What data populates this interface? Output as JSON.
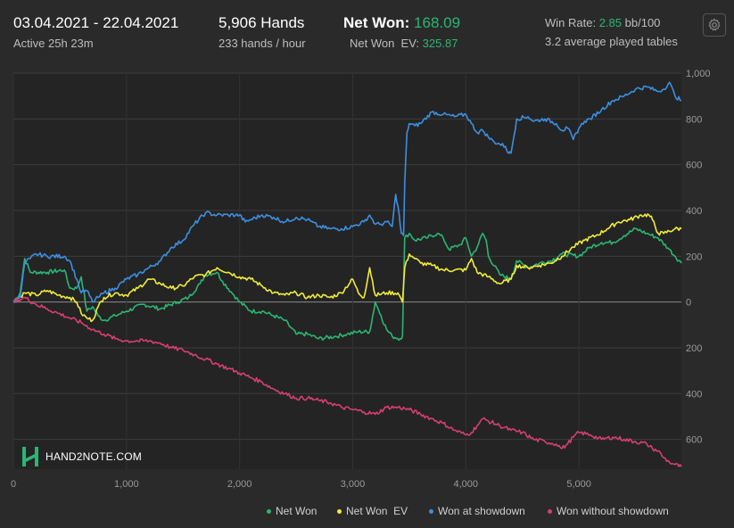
{
  "header": {
    "date_range": "03.04.2021 - 22.04.2021",
    "active": "Active 25h 23m",
    "hands": "5,906 Hands",
    "hands_per_hour": "233 hands / hour",
    "net_won_label": "Net Won:",
    "net_won_value": "168.09",
    "net_won_ev_label": "Net Won  EV:",
    "net_won_ev_value": "325.87",
    "win_rate_label": "Win Rate:",
    "win_rate_value": "2.85",
    "win_rate_unit": "bb/100",
    "avg_tables": "3.2 average played tables",
    "settings_icon": "gear-icon"
  },
  "logo": {
    "text": "HAND2NOTE.COM"
  },
  "colors": {
    "background": "#2a2a2a",
    "net_won": "#2bb673",
    "net_won_ev": "#f0ec3a",
    "showdown": "#3d8fe0",
    "non_showdown": "#d63f72"
  },
  "chart_data": {
    "type": "line",
    "xlim": [
      0,
      5906
    ],
    "ylim": [
      -730,
      1000
    ],
    "x_ticks": [
      0,
      1000,
      2000,
      3000,
      4000,
      5000
    ],
    "x_tick_labels": [
      "0",
      "1,000",
      "2,000",
      "3,000",
      "4,000",
      "5,000"
    ],
    "y_ticks": [
      1000,
      800,
      600,
      400,
      200,
      0,
      -200,
      -400,
      -600
    ],
    "y_tick_labels": [
      "1,000",
      "800",
      "600",
      "400",
      "200",
      "0",
      "200",
      "400",
      "600"
    ],
    "grid": true,
    "legend_position": "bottom-right",
    "series": [
      {
        "name": "Net Won",
        "color": "#2bb673",
        "points": [
          [
            0,
            0
          ],
          [
            60,
            40
          ],
          [
            100,
            190
          ],
          [
            150,
            130
          ],
          [
            300,
            130
          ],
          [
            450,
            140
          ],
          [
            500,
            60
          ],
          [
            560,
            60
          ],
          [
            600,
            110
          ],
          [
            650,
            -40
          ],
          [
            700,
            -20
          ],
          [
            750,
            -60
          ],
          [
            800,
            -80
          ],
          [
            900,
            -60
          ],
          [
            1000,
            -40
          ],
          [
            1150,
            -10
          ],
          [
            1300,
            -30
          ],
          [
            1450,
            0
          ],
          [
            1550,
            20
          ],
          [
            1650,
            80
          ],
          [
            1700,
            120
          ],
          [
            1800,
            130
          ],
          [
            1850,
            90
          ],
          [
            1950,
            30
          ],
          [
            2000,
            0
          ],
          [
            2100,
            -40
          ],
          [
            2200,
            -40
          ],
          [
            2300,
            -60
          ],
          [
            2400,
            -80
          ],
          [
            2500,
            -140
          ],
          [
            2600,
            -140
          ],
          [
            2700,
            -160
          ],
          [
            2850,
            -150
          ],
          [
            2950,
            -140
          ],
          [
            3050,
            -130
          ],
          [
            3150,
            -130
          ],
          [
            3200,
            0
          ],
          [
            3250,
            -60
          ],
          [
            3300,
            -120
          ],
          [
            3350,
            -150
          ],
          [
            3420,
            -160
          ],
          [
            3440,
            -150
          ],
          [
            3460,
            280
          ],
          [
            3500,
            300
          ],
          [
            3550,
            270
          ],
          [
            3650,
            280
          ],
          [
            3750,
            300
          ],
          [
            3800,
            280
          ],
          [
            3850,
            230
          ],
          [
            3950,
            250
          ],
          [
            4000,
            280
          ],
          [
            4050,
            200
          ],
          [
            4100,
            240
          ],
          [
            4150,
            300
          ],
          [
            4180,
            270
          ],
          [
            4200,
            200
          ],
          [
            4300,
            120
          ],
          [
            4400,
            100
          ],
          [
            4450,
            180
          ],
          [
            4550,
            150
          ],
          [
            4650,
            170
          ],
          [
            4750,
            180
          ],
          [
            4850,
            210
          ],
          [
            5000,
            200
          ],
          [
            5100,
            240
          ],
          [
            5200,
            260
          ],
          [
            5300,
            260
          ],
          [
            5400,
            290
          ],
          [
            5500,
            320
          ],
          [
            5600,
            300
          ],
          [
            5700,
            280
          ],
          [
            5800,
            230
          ],
          [
            5850,
            200
          ],
          [
            5906,
            170
          ]
        ]
      },
      {
        "name": "Net Won  EV",
        "color": "#f0ec3a",
        "points": [
          [
            0,
            0
          ],
          [
            100,
            40
          ],
          [
            200,
            30
          ],
          [
            300,
            50
          ],
          [
            400,
            30
          ],
          [
            500,
            20
          ],
          [
            560,
            0
          ],
          [
            600,
            -50
          ],
          [
            650,
            -70
          ],
          [
            700,
            -80
          ],
          [
            750,
            -20
          ],
          [
            800,
            20
          ],
          [
            900,
            40
          ],
          [
            1000,
            30
          ],
          [
            1100,
            60
          ],
          [
            1200,
            100
          ],
          [
            1300,
            80
          ],
          [
            1400,
            60
          ],
          [
            1500,
            70
          ],
          [
            1600,
            110
          ],
          [
            1700,
            120
          ],
          [
            1800,
            150
          ],
          [
            1900,
            130
          ],
          [
            2000,
            110
          ],
          [
            2100,
            100
          ],
          [
            2200,
            70
          ],
          [
            2300,
            40
          ],
          [
            2400,
            30
          ],
          [
            2500,
            40
          ],
          [
            2600,
            20
          ],
          [
            2700,
            30
          ],
          [
            2800,
            20
          ],
          [
            2900,
            40
          ],
          [
            3000,
            100
          ],
          [
            3050,
            40
          ],
          [
            3100,
            20
          ],
          [
            3150,
            150
          ],
          [
            3200,
            30
          ],
          [
            3300,
            40
          ],
          [
            3400,
            40
          ],
          [
            3440,
            0
          ],
          [
            3460,
            150
          ],
          [
            3500,
            210
          ],
          [
            3550,
            190
          ],
          [
            3600,
            170
          ],
          [
            3700,
            160
          ],
          [
            3800,
            140
          ],
          [
            3900,
            140
          ],
          [
            4000,
            140
          ],
          [
            4050,
            190
          ],
          [
            4100,
            130
          ],
          [
            4200,
            110
          ],
          [
            4300,
            80
          ],
          [
            4400,
            100
          ],
          [
            4450,
            160
          ],
          [
            4550,
            150
          ],
          [
            4650,
            160
          ],
          [
            4750,
            170
          ],
          [
            4850,
            200
          ],
          [
            4950,
            240
          ],
          [
            5050,
            270
          ],
          [
            5150,
            290
          ],
          [
            5250,
            320
          ],
          [
            5350,
            350
          ],
          [
            5450,
            360
          ],
          [
            5550,
            380
          ],
          [
            5620,
            380
          ],
          [
            5650,
            360
          ],
          [
            5700,
            300
          ],
          [
            5750,
            300
          ],
          [
            5850,
            320
          ],
          [
            5906,
            320
          ]
        ]
      },
      {
        "name": "Won at showdown",
        "color": "#3d8fe0",
        "points": [
          [
            0,
            0
          ],
          [
            60,
            20
          ],
          [
            100,
            170
          ],
          [
            150,
            190
          ],
          [
            200,
            210
          ],
          [
            300,
            200
          ],
          [
            450,
            200
          ],
          [
            500,
            180
          ],
          [
            560,
            100
          ],
          [
            600,
            40
          ],
          [
            650,
            50
          ],
          [
            700,
            0
          ],
          [
            750,
            20
          ],
          [
            800,
            40
          ],
          [
            900,
            60
          ],
          [
            1000,
            100
          ],
          [
            1100,
            120
          ],
          [
            1200,
            150
          ],
          [
            1300,
            180
          ],
          [
            1400,
            240
          ],
          [
            1500,
            270
          ],
          [
            1600,
            340
          ],
          [
            1700,
            390
          ],
          [
            1800,
            380
          ],
          [
            1900,
            380
          ],
          [
            2000,
            380
          ],
          [
            2050,
            350
          ],
          [
            2100,
            360
          ],
          [
            2200,
            380
          ],
          [
            2300,
            370
          ],
          [
            2400,
            350
          ],
          [
            2500,
            370
          ],
          [
            2600,
            360
          ],
          [
            2700,
            330
          ],
          [
            2800,
            320
          ],
          [
            2900,
            320
          ],
          [
            3000,
            330
          ],
          [
            3100,
            350
          ],
          [
            3150,
            380
          ],
          [
            3200,
            340
          ],
          [
            3250,
            340
          ],
          [
            3300,
            350
          ],
          [
            3350,
            330
          ],
          [
            3380,
            470
          ],
          [
            3400,
            420
          ],
          [
            3430,
            300
          ],
          [
            3450,
            290
          ],
          [
            3460,
            520
          ],
          [
            3480,
            740
          ],
          [
            3500,
            780
          ],
          [
            3550,
            770
          ],
          [
            3600,
            780
          ],
          [
            3700,
            830
          ],
          [
            3800,
            820
          ],
          [
            3900,
            810
          ],
          [
            4000,
            820
          ],
          [
            4050,
            780
          ],
          [
            4100,
            740
          ],
          [
            4150,
            750
          ],
          [
            4200,
            720
          ],
          [
            4250,
            700
          ],
          [
            4300,
            690
          ],
          [
            4350,
            680
          ],
          [
            4380,
            650
          ],
          [
            4400,
            650
          ],
          [
            4450,
            800
          ],
          [
            4550,
            810
          ],
          [
            4600,
            790
          ],
          [
            4700,
            800
          ],
          [
            4800,
            780
          ],
          [
            4850,
            750
          ],
          [
            4900,
            760
          ],
          [
            4950,
            710
          ],
          [
            5000,
            760
          ],
          [
            5050,
            790
          ],
          [
            5100,
            800
          ],
          [
            5200,
            840
          ],
          [
            5300,
            880
          ],
          [
            5400,
            900
          ],
          [
            5500,
            930
          ],
          [
            5600,
            940
          ],
          [
            5700,
            920
          ],
          [
            5750,
            930
          ],
          [
            5800,
            960
          ],
          [
            5850,
            900
          ],
          [
            5906,
            880
          ]
        ]
      },
      {
        "name": "Won without showdown",
        "color": "#d63f72",
        "points": [
          [
            0,
            0
          ],
          [
            100,
            20
          ],
          [
            200,
            -10
          ],
          [
            300,
            -30
          ],
          [
            400,
            -50
          ],
          [
            500,
            -70
          ],
          [
            600,
            -90
          ],
          [
            700,
            -120
          ],
          [
            800,
            -140
          ],
          [
            900,
            -160
          ],
          [
            1000,
            -170
          ],
          [
            1100,
            -170
          ],
          [
            1200,
            -170
          ],
          [
            1300,
            -180
          ],
          [
            1400,
            -200
          ],
          [
            1500,
            -210
          ],
          [
            1600,
            -230
          ],
          [
            1700,
            -250
          ],
          [
            1800,
            -270
          ],
          [
            1900,
            -290
          ],
          [
            2000,
            -310
          ],
          [
            2100,
            -330
          ],
          [
            2200,
            -350
          ],
          [
            2300,
            -380
          ],
          [
            2400,
            -400
          ],
          [
            2500,
            -420
          ],
          [
            2600,
            -420
          ],
          [
            2700,
            -430
          ],
          [
            2800,
            -440
          ],
          [
            2900,
            -460
          ],
          [
            3000,
            -470
          ],
          [
            3100,
            -480
          ],
          [
            3200,
            -490
          ],
          [
            3300,
            -460
          ],
          [
            3400,
            -460
          ],
          [
            3500,
            -470
          ],
          [
            3600,
            -490
          ],
          [
            3700,
            -510
          ],
          [
            3800,
            -530
          ],
          [
            3900,
            -560
          ],
          [
            4000,
            -580
          ],
          [
            4050,
            -570
          ],
          [
            4100,
            -540
          ],
          [
            4150,
            -510
          ],
          [
            4200,
            -520
          ],
          [
            4300,
            -540
          ],
          [
            4400,
            -560
          ],
          [
            4500,
            -570
          ],
          [
            4600,
            -600
          ],
          [
            4700,
            -610
          ],
          [
            4800,
            -620
          ],
          [
            4850,
            -640
          ],
          [
            4900,
            -620
          ],
          [
            4950,
            -590
          ],
          [
            5000,
            -570
          ],
          [
            5100,
            -580
          ],
          [
            5200,
            -600
          ],
          [
            5300,
            -590
          ],
          [
            5400,
            -600
          ],
          [
            5500,
            -610
          ],
          [
            5600,
            -620
          ],
          [
            5650,
            -640
          ],
          [
            5700,
            -650
          ],
          [
            5750,
            -680
          ],
          [
            5800,
            -700
          ],
          [
            5850,
            -710
          ],
          [
            5906,
            -720
          ]
        ]
      }
    ]
  }
}
